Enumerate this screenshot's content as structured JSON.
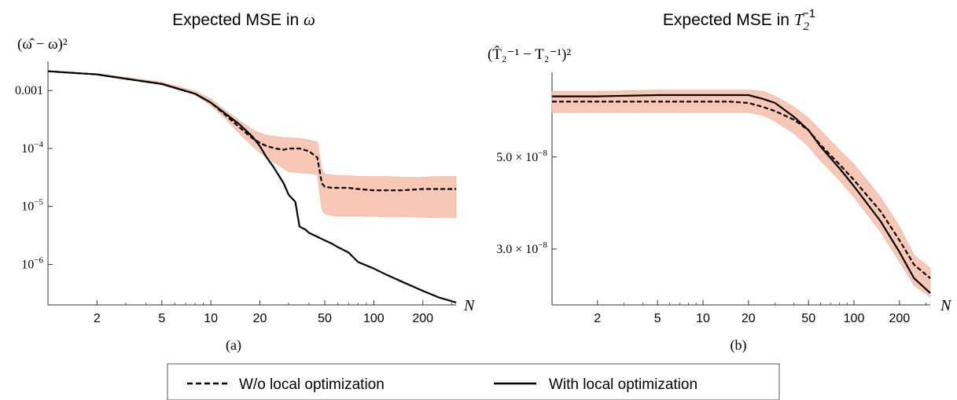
{
  "chart_data": [
    {
      "type": "line",
      "title_prefix": "Expected MSE in ",
      "title_symbol": "ω",
      "ylabel": "(ω̂ − ω)²",
      "xlabel": "N",
      "sublabel": "(a)",
      "xscale": "log",
      "yscale": "log",
      "xlim": [
        1,
        320
      ],
      "ylim": [
        2e-07,
        0.0032
      ],
      "xticks": [
        2,
        5,
        10,
        20,
        50,
        100,
        200
      ],
      "yticks": [
        {
          "value": 0.001,
          "label": "0.001"
        },
        {
          "value": 0.0001,
          "base": "10",
          "exp": "−4"
        },
        {
          "value": 1e-05,
          "base": "10",
          "exp": "−5"
        },
        {
          "value": 1e-06,
          "base": "10",
          "exp": "−6"
        }
      ],
      "band": {
        "x": [
          1,
          2,
          3,
          5,
          8,
          10,
          12,
          15,
          18,
          20,
          22,
          25,
          28,
          30,
          35,
          40,
          45,
          48,
          50,
          55,
          60,
          70,
          80,
          100,
          120,
          150,
          200,
          250,
          320
        ],
        "upper": [
          0.0022,
          0.00195,
          0.0017,
          0.0014,
          0.00098,
          0.00072,
          0.00048,
          0.0003,
          0.00021,
          0.000185,
          0.00017,
          0.00016,
          0.000155,
          0.000153,
          0.00015,
          0.00014,
          0.00013,
          4.5e-05,
          3.6e-05,
          3.5e-05,
          3.4e-05,
          3.4e-05,
          3.3e-05,
          3.3e-05,
          3.3e-05,
          3.2e-05,
          3.2e-05,
          3.3e-05,
          3.3e-05
        ],
        "lower": [
          0.00212,
          0.00185,
          0.00155,
          0.00125,
          0.00085,
          0.00055,
          0.00035,
          0.00018,
          0.00011,
          8.5e-05,
          7e-05,
          5.5e-05,
          4.5e-05,
          4e-05,
          3.8e-05,
          3.7e-05,
          3.6e-05,
          9e-06,
          7.5e-06,
          7e-06,
          6.8e-06,
          6.8e-06,
          6.8e-06,
          6.7e-06,
          6.6e-06,
          6.6e-06,
          6.5e-06,
          6.4e-06,
          6.4e-06
        ]
      },
      "series": [
        {
          "name": "W/o local optimization",
          "style": "dashed",
          "x": [
            1,
            2,
            3,
            5,
            8,
            10,
            12,
            15,
            18,
            20,
            22,
            25,
            28,
            30,
            35,
            40,
            45,
            48,
            50,
            55,
            60,
            70,
            80,
            100,
            120,
            150,
            200,
            250,
            320
          ],
          "y": [
            0.00215,
            0.0019,
            0.0016,
            0.0013,
            0.00088,
            0.00062,
            0.0004,
            0.00023,
            0.00015,
            0.000125,
            0.00011,
            0.0001,
            9.5e-05,
            0.0001,
            0.0001,
            9e-05,
            7e-05,
            2.5e-05,
            2.2e-05,
            2.1e-05,
            2.1e-05,
            2.1e-05,
            2e-05,
            1.9e-05,
            1.9e-05,
            1.9e-05,
            2e-05,
            2e-05,
            2e-05
          ]
        },
        {
          "name": "With local optimization",
          "style": "solid",
          "x": [
            1,
            2,
            3,
            5,
            8,
            10,
            12,
            15,
            18,
            20,
            22,
            24,
            26,
            28,
            30,
            33,
            35,
            38,
            40,
            45,
            50,
            55,
            60,
            70,
            80,
            100,
            120,
            150,
            200,
            250,
            320
          ],
          "y": [
            0.00215,
            0.0019,
            0.0016,
            0.0013,
            0.00088,
            0.00062,
            0.00042,
            0.00026,
            0.00016,
            0.00011,
            7e-05,
            5e-05,
            3.5e-05,
            2.5e-05,
            1.6e-05,
            1.2e-05,
            4.5e-06,
            4e-06,
            3.5e-06,
            3e-06,
            2.6e-06,
            2.3e-06,
            2e-06,
            1.6e-06,
            1.1e-06,
            8.5e-07,
            6.6e-07,
            5e-07,
            3.5e-07,
            2.7e-07,
            2.2e-07
          ]
        }
      ]
    },
    {
      "type": "line",
      "title_prefix": "Expected MSE in ",
      "title_symbol": "T",
      "title_sub": "2",
      "title_sup": "−1",
      "ylabel": "(T̂₂⁻¹ − T₂⁻¹)²",
      "xlabel": "N",
      "sublabel": "(b)",
      "xscale": "log",
      "yscale": "log",
      "xlim": [
        1,
        320
      ],
      "ylim": [
        2.2e-08,
        8e-08
      ],
      "xticks": [
        2,
        5,
        10,
        20,
        50,
        100,
        200
      ],
      "yticks": [
        {
          "value": 5e-08,
          "mant": "5.0",
          "base": "10",
          "exp": "−8"
        },
        {
          "value": 3e-08,
          "mant": "3.0",
          "base": "10",
          "exp": "−8"
        }
      ],
      "band": {
        "x": [
          1,
          2,
          5,
          10,
          15,
          20,
          25,
          30,
          40,
          50,
          60,
          80,
          100,
          150,
          200,
          250,
          320
        ],
        "upper": [
          7.2e-08,
          7.2e-08,
          7.25e-08,
          7.25e-08,
          7.25e-08,
          7.25e-08,
          7.2e-08,
          7e-08,
          6.6e-08,
          6.2e-08,
          5.8e-08,
          5.2e-08,
          4.8e-08,
          4e-08,
          3.4e-08,
          2.9e-08,
          2.7e-08
        ],
        "lower": [
          6.4e-08,
          6.4e-08,
          6.4e-08,
          6.4e-08,
          6.4e-08,
          6.4e-08,
          6.3e-08,
          6.1e-08,
          5.7e-08,
          5.3e-08,
          4.9e-08,
          4.4e-08,
          4e-08,
          3.3e-08,
          2.8e-08,
          2.45e-08,
          2.3e-08
        ]
      },
      "series": [
        {
          "name": "W/o local optimization",
          "style": "dashed",
          "x": [
            1,
            2,
            5,
            10,
            15,
            20,
            25,
            30,
            40,
            50,
            60,
            80,
            100,
            150,
            200,
            250,
            320
          ],
          "y": [
            6.8e-08,
            6.8e-08,
            6.8e-08,
            6.8e-08,
            6.8e-08,
            6.75e-08,
            6.6e-08,
            6.45e-08,
            6.15e-08,
            5.8e-08,
            5.35e-08,
            4.8e-08,
            4.4e-08,
            3.7e-08,
            3.15e-08,
            2.75e-08,
            2.55e-08
          ]
        },
        {
          "name": "With local optimization",
          "style": "solid",
          "x": [
            1,
            2,
            5,
            10,
            15,
            20,
            25,
            30,
            40,
            50,
            60,
            80,
            100,
            150,
            200,
            250,
            320
          ],
          "y": [
            7e-08,
            7e-08,
            7.05e-08,
            7.05e-08,
            7.05e-08,
            7.05e-08,
            6.9e-08,
            6.75e-08,
            6.25e-08,
            5.8e-08,
            5.3e-08,
            4.7e-08,
            4.25e-08,
            3.5e-08,
            2.95e-08,
            2.55e-08,
            2.35e-08
          ]
        }
      ]
    }
  ],
  "legend": {
    "items": [
      {
        "label": "W/o local optimization",
        "style": "dashed"
      },
      {
        "label": "With local optimization",
        "style": "solid"
      }
    ]
  },
  "colors": {
    "band": "#f7c6b2",
    "band_edge": "#f0a88c",
    "line": "#000000",
    "axis": "#333333"
  }
}
